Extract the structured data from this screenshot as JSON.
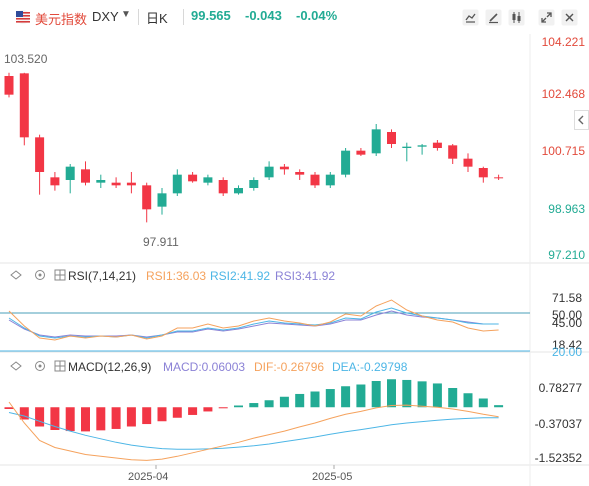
{
  "header": {
    "name": "美元指数",
    "code": "DXY",
    "period": "日K",
    "price": "99.565",
    "change": "-0.043",
    "change_pct": "-0.04%"
  },
  "colors": {
    "up": "#22ab94",
    "down": "#f23645",
    "rsi1": "#f5a25d",
    "rsi2": "#4db6e6",
    "rsi3": "#8b82d6",
    "dif": "#f5a25d",
    "dea": "#4db6e6"
  },
  "price_panel": {
    "y_ticks": [
      "104.221",
      "102.468",
      "100.715",
      "98.963",
      "97.210"
    ],
    "max_label": "103.520",
    "min_label": "97.911"
  },
  "rsi_panel": {
    "title": "RSI(7,14,21)",
    "rsi1": "RSI1:36.03",
    "rsi2": "RSI2:41.92",
    "rsi3": "RSI3:41.92",
    "ticks": [
      "71.58",
      "50.00",
      "45.00",
      "18.42",
      "20.00"
    ]
  },
  "macd_panel": {
    "title": "MACD(12,26,9)",
    "macd": "MACD:0.06003",
    "dif": "DIF:-0.26796",
    "dea": "DEA:-0.29798",
    "ticks": [
      "0.78277",
      "-0.37037",
      "-1.52352"
    ]
  },
  "x_labels": [
    "2025-04",
    "2025-05"
  ],
  "toolbar": [
    "indicator-icon",
    "draw-icon",
    "candle-type-icon",
    "fullscreen-icon",
    "close-icon"
  ],
  "chart_data": {
    "type": "candlestick",
    "price_range": [
      96.5,
      104.9
    ],
    "candles": [
      {
        "o": 103.4,
        "h": 103.52,
        "l": 102.6,
        "c": 102.7
      },
      {
        "o": 103.5,
        "h": 103.52,
        "l": 100.8,
        "c": 101.1
      },
      {
        "o": 101.1,
        "h": 101.2,
        "l": 98.95,
        "c": 99.8
      },
      {
        "o": 99.6,
        "h": 99.8,
        "l": 99.1,
        "c": 99.3
      },
      {
        "o": 99.5,
        "h": 100.1,
        "l": 99.0,
        "c": 100.0
      },
      {
        "o": 99.9,
        "h": 100.2,
        "l": 99.3,
        "c": 99.4
      },
      {
        "o": 99.4,
        "h": 99.7,
        "l": 99.2,
        "c": 99.5
      },
      {
        "o": 99.4,
        "h": 99.6,
        "l": 99.2,
        "c": 99.3
      },
      {
        "o": 99.4,
        "h": 99.8,
        "l": 99.0,
        "c": 99.3
      },
      {
        "o": 99.3,
        "h": 99.4,
        "l": 97.911,
        "c": 98.4
      },
      {
        "o": 98.5,
        "h": 99.2,
        "l": 98.2,
        "c": 99.0
      },
      {
        "o": 99.0,
        "h": 99.9,
        "l": 98.9,
        "c": 99.7
      },
      {
        "o": 99.7,
        "h": 99.8,
        "l": 99.4,
        "c": 99.45
      },
      {
        "o": 99.4,
        "h": 99.7,
        "l": 99.3,
        "c": 99.6
      },
      {
        "o": 99.5,
        "h": 99.6,
        "l": 98.9,
        "c": 99.0
      },
      {
        "o": 99.0,
        "h": 99.3,
        "l": 98.95,
        "c": 99.2
      },
      {
        "o": 99.2,
        "h": 99.6,
        "l": 99.1,
        "c": 99.5
      },
      {
        "o": 99.6,
        "h": 100.2,
        "l": 99.5,
        "c": 100.0
      },
      {
        "o": 100.0,
        "h": 100.1,
        "l": 99.7,
        "c": 99.9
      },
      {
        "o": 99.8,
        "h": 99.9,
        "l": 99.5,
        "c": 99.7
      },
      {
        "o": 99.7,
        "h": 99.8,
        "l": 99.2,
        "c": 99.3
      },
      {
        "o": 99.3,
        "h": 99.8,
        "l": 99.2,
        "c": 99.7
      },
      {
        "o": 99.7,
        "h": 100.7,
        "l": 99.6,
        "c": 100.6
      },
      {
        "o": 100.6,
        "h": 100.7,
        "l": 100.4,
        "c": 100.45
      },
      {
        "o": 100.5,
        "h": 101.6,
        "l": 100.4,
        "c": 101.4
      },
      {
        "o": 101.3,
        "h": 101.4,
        "l": 100.7,
        "c": 100.85
      },
      {
        "o": 100.7,
        "h": 100.9,
        "l": 100.2,
        "c": 100.75
      },
      {
        "o": 100.75,
        "h": 100.85,
        "l": 100.45,
        "c": 100.8
      },
      {
        "o": 100.9,
        "h": 101.0,
        "l": 100.6,
        "c": 100.7
      },
      {
        "o": 100.8,
        "h": 100.85,
        "l": 100.1,
        "c": 100.3
      },
      {
        "o": 100.3,
        "h": 100.5,
        "l": 99.8,
        "c": 100.0
      },
      {
        "o": 99.95,
        "h": 100.0,
        "l": 99.4,
        "c": 99.6
      },
      {
        "o": 99.6,
        "h": 99.7,
        "l": 99.5,
        "c": 99.565
      }
    ],
    "rsi_range": [
      15,
      80
    ],
    "rsi1": [
      55,
      40,
      28,
      26,
      30,
      28,
      30,
      29,
      31,
      27,
      30,
      38,
      38,
      42,
      38,
      40,
      45,
      48,
      45,
      43,
      40,
      44,
      52,
      50,
      60,
      66,
      56,
      50,
      46,
      44,
      38,
      35,
      36
    ],
    "rsi2": [
      48,
      38,
      30,
      28,
      30,
      29,
      30,
      29,
      31,
      28,
      31,
      35,
      35,
      38,
      36,
      38,
      42,
      45,
      43,
      42,
      41,
      43,
      48,
      47,
      54,
      58,
      53,
      50,
      48,
      46,
      43,
      42,
      42
    ],
    "rsi3": [
      46,
      37,
      31,
      29,
      31,
      30,
      30,
      30,
      31,
      29,
      31,
      34,
      34,
      37,
      35,
      37,
      40,
      43,
      42,
      41,
      40,
      42,
      46,
      46,
      51,
      55,
      51,
      49,
      48,
      46,
      44,
      42,
      42
    ],
    "macd_range": [
      -1.65,
      0.95
    ],
    "macd_hist": [
      -0.05,
      -0.35,
      -0.55,
      -0.65,
      -0.68,
      -0.69,
      -0.66,
      -0.62,
      -0.55,
      -0.48,
      -0.4,
      -0.3,
      -0.22,
      -0.12,
      -0.03,
      0.05,
      0.12,
      0.2,
      0.3,
      0.38,
      0.45,
      0.52,
      0.6,
      0.65,
      0.75,
      0.8,
      0.78,
      0.74,
      0.68,
      0.55,
      0.4,
      0.25,
      0.06
    ],
    "dif": [
      0.15,
      -0.45,
      -0.95,
      -1.15,
      -1.25,
      -1.35,
      -1.4,
      -1.45,
      -1.5,
      -1.52,
      -1.48,
      -1.4,
      -1.3,
      -1.2,
      -1.1,
      -1.0,
      -0.88,
      -0.78,
      -0.68,
      -0.56,
      -0.45,
      -0.32,
      -0.2,
      -0.12,
      -0.02,
      0.05,
      0.06,
      0.03,
      0.0,
      -0.05,
      -0.12,
      -0.2,
      -0.27
    ],
    "dea": [
      -0.15,
      -0.25,
      -0.4,
      -0.55,
      -0.68,
      -0.8,
      -0.9,
      -1.0,
      -1.08,
      -1.14,
      -1.18,
      -1.2,
      -1.2,
      -1.19,
      -1.17,
      -1.14,
      -1.1,
      -1.05,
      -0.98,
      -0.92,
      -0.85,
      -0.77,
      -0.7,
      -0.64,
      -0.57,
      -0.5,
      -0.45,
      -0.41,
      -0.37,
      -0.34,
      -0.32,
      -0.3,
      -0.3
    ]
  }
}
